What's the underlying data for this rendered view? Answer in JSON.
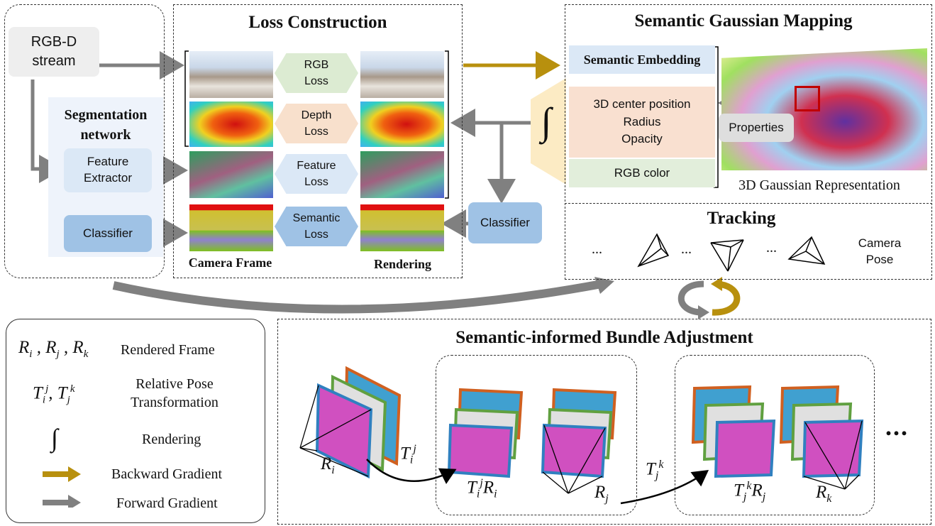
{
  "input": {
    "rgbd": "RGB-D\nstream"
  },
  "segmentation": {
    "title": "Segmentation\nnetwork",
    "feature_extractor": "Feature\nExtractor",
    "classifier": "Classifier"
  },
  "loss": {
    "title": "Loss Construction",
    "rgb_loss": "RGB\nLoss",
    "depth_loss": "Depth\nLoss",
    "feature_loss": "Feature\nLoss",
    "semantic_loss": "Semantic\nLoss",
    "camera_frame": "Camera Frame",
    "rendering": "Rendering"
  },
  "classifier_right": "Classifier",
  "integral_symbol": "∫",
  "mapping": {
    "title": "Semantic Gaussian Mapping",
    "semantic_embedding": "Semantic Embedding",
    "properties_block": "3D center position\nRadius\nOpacity",
    "rgb_color": "RGB color",
    "properties_label": "Properties",
    "representation_label": "3D Gaussian Representation"
  },
  "tracking": {
    "title": "Tracking",
    "ellipsis": "...",
    "camera_pose": "Camera\nPose"
  },
  "legend": {
    "rendered_frame_symbols": "R_i , R_j , R_k",
    "rendered_frame": "Rendered Frame",
    "relative_pose_symbols": "T_i^j , T_j^k",
    "relative_pose": "Relative Pose\nTransformation",
    "rendering_symbol": "∫",
    "rendering": "Rendering",
    "backward": "Backward Gradient",
    "forward": "Forward Gradient"
  },
  "bundle": {
    "title": "Semantic-informed Bundle Adjustment",
    "ellipsis": "..."
  },
  "colors": {
    "forward_arrow": "#808080",
    "backward_arrow": "#b8900e",
    "rgb_loss_bg": "#dcebd2",
    "depth_loss_bg": "#f8e0cc",
    "feature_loss_bg": "#dbe8f6",
    "semantic_loss_bg": "#9fc2e5",
    "blue_box": "#9fc2e5",
    "light_blue_panel": "#eef3fb",
    "semantic_embedding_bg": "#dbe8f6",
    "properties_bg": "#f9e0d0",
    "rgb_color_bg": "#e2eedb",
    "integral_bg": "#fcebc4",
    "grey_box": "#eeeeee"
  }
}
